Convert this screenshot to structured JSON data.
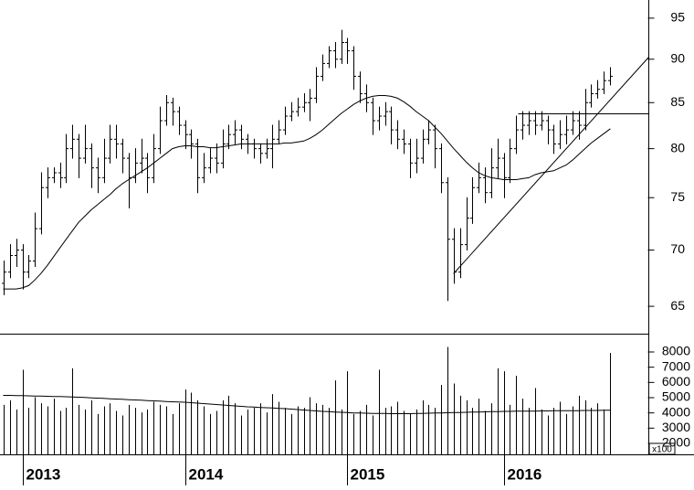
{
  "chart_data": [
    {
      "type": "ohlc",
      "log_scale": true,
      "categories": [
        null,
        null,
        null,
        "2013",
        null,
        null,
        null,
        null,
        null,
        null,
        null,
        null,
        null,
        null,
        null,
        null,
        null,
        null,
        null,
        null,
        null,
        null,
        null,
        null,
        null,
        null,
        null,
        null,
        null,
        "2014",
        null,
        null,
        null,
        null,
        null,
        null,
        null,
        null,
        null,
        null,
        null,
        null,
        null,
        null,
        null,
        null,
        null,
        null,
        null,
        null,
        null,
        null,
        null,
        null,
        null,
        "2015",
        null,
        null,
        null,
        null,
        null,
        null,
        null,
        null,
        null,
        null,
        null,
        null,
        null,
        null,
        null,
        null,
        null,
        null,
        null,
        null,
        null,
        null,
        null,
        null,
        "2016",
        null,
        null,
        null,
        null,
        null,
        null,
        null,
        null,
        null,
        null,
        null,
        null,
        null,
        null,
        null,
        null,
        null
      ],
      "open": [
        67,
        68,
        69.5,
        70,
        68,
        69,
        72,
        76,
        77,
        77.5,
        77,
        80,
        81,
        79,
        80,
        78,
        77,
        79,
        81,
        80.5,
        79,
        77,
        78.5,
        79,
        77,
        80,
        83,
        85,
        84,
        82.5,
        81.5,
        80.5,
        77,
        78,
        79,
        78.5,
        80.5,
        81.5,
        82,
        81,
        80.5,
        80,
        79.5,
        80,
        81,
        82,
        83.5,
        84,
        84.5,
        85,
        85.5,
        88,
        89.5,
        91,
        90,
        92,
        91,
        88,
        86,
        85,
        83,
        83.5,
        84,
        82,
        81,
        80.5,
        78.5,
        79,
        81,
        82,
        80,
        76.5,
        71,
        68,
        70.5,
        73,
        76,
        77,
        75.5,
        78,
        79,
        77,
        80,
        82,
        82.5,
        83,
        82.5,
        83,
        82,
        80.5,
        81.5,
        82,
        83,
        82.5,
        85,
        86,
        86.5,
        87.5
      ],
      "high": [
        69,
        70.5,
        71,
        70.5,
        69.5,
        73.5,
        77.5,
        78,
        78,
        78.5,
        81.5,
        82.5,
        81.5,
        82.5,
        80.5,
        79,
        81,
        82.5,
        82.5,
        81,
        79.5,
        80,
        81,
        79.5,
        81.5,
        84.5,
        85.8,
        85.5,
        84.5,
        83,
        82,
        81,
        79.5,
        80,
        80.5,
        82,
        82.5,
        83,
        82.5,
        81.5,
        81,
        80.5,
        81,
        82.5,
        83,
        84.5,
        85,
        85.5,
        86,
        86.5,
        89,
        90.5,
        91.5,
        92,
        93.5,
        92.5,
        91.5,
        88.5,
        87,
        85.5,
        84.5,
        85,
        84.5,
        83,
        82,
        81,
        81,
        82,
        83,
        82.5,
        80.5,
        77,
        72,
        72,
        75,
        77,
        78.5,
        78,
        80,
        81,
        79.5,
        81,
        83.5,
        84,
        84,
        84,
        84,
        83.5,
        82.5,
        83,
        83.5,
        84,
        84,
        86.5,
        87,
        87.5,
        88.5,
        89
      ],
      "low": [
        66,
        67.5,
        68.5,
        66.5,
        67.5,
        68.5,
        71.5,
        75,
        76.5,
        76,
        76.5,
        79,
        77,
        78.5,
        76,
        75.5,
        76.5,
        78.5,
        79,
        77.5,
        74,
        76.5,
        77.5,
        75.5,
        76.5,
        79.5,
        82.5,
        82.5,
        81.5,
        80,
        79,
        75.5,
        76.5,
        77.5,
        77.5,
        78,
        80,
        80.5,
        80,
        79.5,
        79,
        78.5,
        79,
        78,
        80.5,
        81.5,
        83,
        83.5,
        84,
        83,
        85,
        87.5,
        89,
        89,
        89.5,
        89.5,
        86.5,
        85,
        84,
        81.5,
        82,
        82.5,
        80.5,
        80,
        79.5,
        77,
        77.5,
        78.5,
        80.5,
        78,
        75.5,
        65.5,
        67,
        67.5,
        70,
        72.5,
        75.5,
        74.5,
        75,
        77,
        75,
        76.5,
        79.5,
        81,
        81.5,
        81.5,
        82,
        80.5,
        79.5,
        80,
        80.5,
        81.5,
        81,
        82,
        84.5,
        85.5,
        86,
        87
      ],
      "close": [
        68,
        69.5,
        70,
        68,
        69,
        72,
        76,
        77,
        77.5,
        77,
        80,
        81,
        79,
        80,
        78,
        77,
        79,
        81,
        80.5,
        79,
        77,
        78.5,
        79,
        77,
        80,
        83,
        85,
        84,
        82.5,
        81.5,
        80.5,
        77,
        78,
        79,
        78.5,
        80.5,
        81.5,
        82,
        81,
        80.5,
        80,
        79.5,
        80,
        81,
        82,
        83.5,
        84,
        84.5,
        85,
        85.5,
        88,
        89.5,
        91,
        90,
        92,
        91,
        88,
        86,
        85,
        83,
        83.5,
        84,
        82,
        81,
        80.5,
        78.5,
        79,
        81,
        82,
        80,
        76.5,
        71,
        68,
        70.5,
        73,
        76,
        77,
        75.5,
        78,
        79,
        77,
        80,
        82,
        82.5,
        83,
        82.5,
        83,
        82,
        80.5,
        81.5,
        82,
        83,
        82.5,
        85,
        86,
        86.5,
        87.5,
        88
      ],
      "moving_average": [
        66.5,
        66.5,
        66.5,
        66.6,
        66.8,
        67.3,
        67.9,
        68.6,
        69.4,
        70.2,
        71,
        71.8,
        72.6,
        73.2,
        73.8,
        74.3,
        74.8,
        75.3,
        75.9,
        76.4,
        76.8,
        77.2,
        77.6,
        78,
        78.5,
        79,
        79.5,
        80,
        80.2,
        80.3,
        80.3,
        80.2,
        80.2,
        80.1,
        80.1,
        80.2,
        80.3,
        80.4,
        80.5,
        80.5,
        80.5,
        80.5,
        80.5,
        80.5,
        80.5,
        80.6,
        80.6,
        80.7,
        80.8,
        81.1,
        81.5,
        82,
        82.6,
        83.2,
        83.8,
        84.3,
        84.8,
        85.2,
        85.5,
        85.7,
        85.8,
        85.8,
        85.7,
        85.5,
        85.1,
        84.6,
        84,
        83.5,
        83,
        82.3,
        81.6,
        80.8,
        80,
        79.3,
        78.6,
        78,
        77.5,
        77.2,
        77,
        76.9,
        76.8,
        76.8,
        76.8,
        76.9,
        77,
        77.3,
        77.5,
        77.6,
        77.7,
        78,
        78.3,
        78.8,
        79.4,
        80,
        80.6,
        81.1,
        81.6,
        82.1
      ],
      "ylim": [
        62.7,
        97.3
      ],
      "yticks": [
        65,
        70,
        75,
        80,
        85,
        90,
        95
      ]
    },
    {
      "type": "bar",
      "unit_label": "x100",
      "values": [
        4500,
        4800,
        4200,
        6800,
        4300,
        5000,
        4600,
        4400,
        4900,
        4100,
        4300,
        6900,
        4500,
        4200,
        4800,
        3900,
        4400,
        4600,
        4100,
        3800,
        4500,
        4300,
        4000,
        4200,
        4700,
        4500,
        4400,
        3900,
        4600,
        5500,
        5300,
        4800,
        4400,
        3900,
        4100,
        4800,
        5100,
        4600,
        3800,
        4200,
        4300,
        4600,
        4000,
        5200,
        4700,
        4300,
        3900,
        4400,
        4300,
        5000,
        4600,
        4500,
        4300,
        6100,
        4200,
        6700,
        3900,
        4100,
        4500,
        3800,
        6800,
        4300,
        4400,
        4700,
        4100,
        3900,
        4200,
        4800,
        4500,
        4300,
        5800,
        8300,
        5900,
        5100,
        4800,
        4300,
        4900,
        4100,
        4600,
        6900,
        6700,
        4500,
        6400,
        4900,
        4300,
        5600,
        4200,
        3800,
        4300,
        4700,
        3900,
        4400,
        5100,
        4800,
        4300,
        4600,
        4200,
        7900
      ],
      "moving_average": [
        5150,
        5150,
        5140,
        5130,
        5120,
        5110,
        5100,
        5090,
        5080,
        5070,
        5060,
        5050,
        5030,
        5010,
        4990,
        4970,
        4950,
        4930,
        4910,
        4890,
        4870,
        4850,
        4830,
        4810,
        4790,
        4770,
        4750,
        4730,
        4710,
        4700,
        4670,
        4640,
        4610,
        4580,
        4550,
        4520,
        4490,
        4460,
        4430,
        4400,
        4380,
        4360,
        4340,
        4320,
        4300,
        4280,
        4250,
        4220,
        4190,
        4160,
        4130,
        4100,
        4080,
        4060,
        4040,
        4020,
        4000,
        3990,
        3980,
        3970,
        3960,
        3960,
        3950,
        3950,
        3950,
        3950,
        3960,
        3970,
        3980,
        3990,
        4000,
        4010,
        4020,
        4030,
        4040,
        4050,
        4060,
        4070,
        4080,
        4090,
        4100,
        4100,
        4110,
        4110,
        4120,
        4120,
        4130,
        4130,
        4140,
        4140,
        4150,
        4150,
        4150,
        4160,
        4160,
        4160,
        4170,
        4170
      ],
      "ylim": [
        1280,
        9200
      ],
      "yticks": [
        2000,
        3000,
        4000,
        5000,
        6000,
        7000,
        8000
      ]
    }
  ]
}
